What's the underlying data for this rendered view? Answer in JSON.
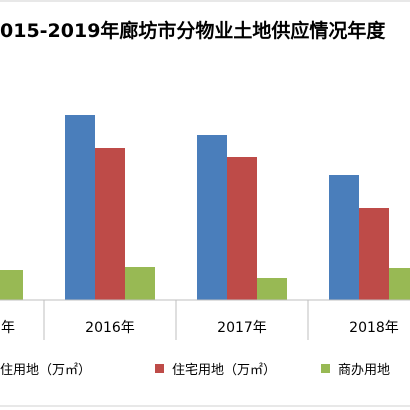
{
  "chart_data": {
    "type": "bar",
    "title": "015-2019年廊坊市分物业土地供应情况年度",
    "categories": [
      "年",
      "2016年",
      "2017年",
      "2018年"
    ],
    "series": [
      {
        "name": "住用地（万㎡）",
        "color": "#4a7ebb",
        "values": [
          null,
          185,
          165,
          125
        ]
      },
      {
        "name": "住宅用地（万㎡）",
        "color": "#be4b48",
        "values": [
          null,
          152,
          143,
          92
        ]
      },
      {
        "name": "商办用地",
        "color": "#98b954",
        "values": [
          30,
          33,
          22,
          32
        ]
      }
    ],
    "ylim": [
      0,
      250
    ],
    "grid": false,
    "legend": "bottom"
  }
}
